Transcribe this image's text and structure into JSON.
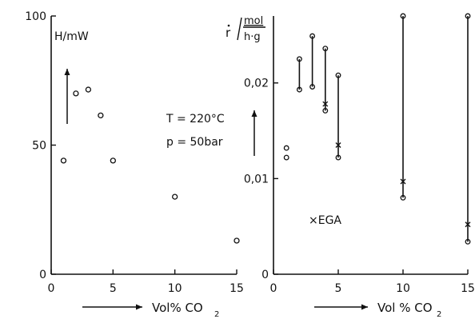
{
  "chart_data": [
    {
      "type": "scatter",
      "ylabel": "H/mW",
      "xlabel": "Vol% CO2",
      "xlim": [
        0,
        15
      ],
      "ylim": [
        0,
        100
      ],
      "x_ticks": [
        "0",
        "5",
        "10",
        "15"
      ],
      "y_ticks": [
        "0",
        "50",
        "100"
      ],
      "annotation": {
        "line1": "T = 220°C",
        "line2": "p =   50bar"
      },
      "series": [
        {
          "x": [
            1,
            2,
            3,
            4,
            5,
            10,
            15
          ],
          "y": [
            44,
            70,
            71.5,
            61.5,
            44,
            30,
            13
          ]
        }
      ]
    },
    {
      "type": "scatter",
      "ylabel_numerator": "mol",
      "ylabel_denominator": "h·g",
      "ylabel_prefix": "r",
      "xlabel": "Vol % CO2",
      "xlim": [
        0,
        15
      ],
      "ylim": [
        0,
        0.027
      ],
      "x_ticks": [
        "0",
        "5",
        "10",
        "15"
      ],
      "y_ticks": [
        "0",
        "0,01",
        "0,02"
      ],
      "legend": "×EGA",
      "series": [
        {
          "x": [
            1,
            1,
            2,
            2,
            3,
            3,
            4,
            4,
            5,
            5,
            10,
            10,
            15,
            15
          ],
          "y": [
            0.0132,
            0.0122,
            0.0225,
            0.0193,
            0.0249,
            0.0196,
            0.0236,
            0.0171,
            0.0208,
            0.0122,
            0.027,
            0.008,
            0.027,
            0.0034
          ]
        },
        {
          "x": [
            4,
            5,
            10,
            15
          ],
          "y": [
            0.0178,
            0.0135,
            0.0097,
            0.0052
          ]
        }
      ],
      "ranges": [
        {
          "x": 2,
          "y": [
            0.0193,
            0.0225
          ]
        },
        {
          "x": 3,
          "y": [
            0.0196,
            0.0249
          ]
        },
        {
          "x": 4,
          "y": [
            0.0171,
            0.0236
          ]
        },
        {
          "x": 5,
          "y": [
            0.0122,
            0.0208
          ]
        },
        {
          "x": 10,
          "y": [
            0.008,
            0.027
          ]
        },
        {
          "x": 15,
          "y": [
            0.0034,
            0.027
          ]
        }
      ]
    }
  ]
}
